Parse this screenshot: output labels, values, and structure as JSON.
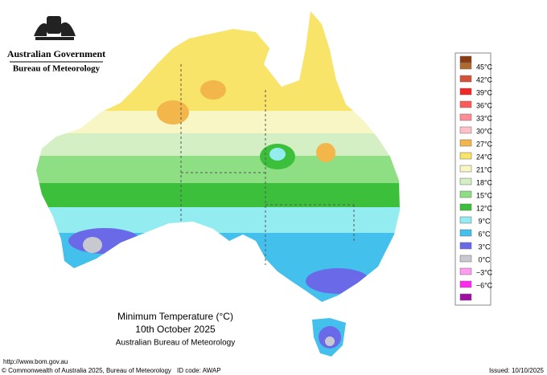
{
  "header": {
    "government": "Australian Government",
    "agency": "Bureau of Meteorology"
  },
  "legend": {
    "labels": [
      "45°C",
      "42°C",
      "39°C",
      "36°C",
      "33°C",
      "30°C",
      "27°C",
      "24°C",
      "21°C",
      "18°C",
      "15°C",
      "12°C",
      "9°C",
      "6°C",
      "3°C",
      "0°C",
      "−3°C",
      "−6°C"
    ],
    "colors": [
      "#8b3a12",
      "#b06a30",
      "#d2533a",
      "#f02828",
      "#ff5a5a",
      "#ff8c96",
      "#ffc0c8",
      "#f2b64a",
      "#f7e468",
      "#f8f6c4",
      "#d4efc4",
      "#8ede84",
      "#3cc03c",
      "#92ecf0",
      "#44c0ec",
      "#6a6ae8",
      "#c8c8d0",
      "#ff9cf0",
      "#ff2cf0",
      "#a010a0"
    ]
  },
  "title": {
    "line1": "Minimum Temperature (°C)",
    "line2": "10th October 2025",
    "line3": "Australian Bureau of Meteorology"
  },
  "footer": {
    "url": "http://www.bom.gov.au",
    "copyright": "© Commonwealth of Australia 2025, Bureau of Meteorology",
    "id": "ID code: AWAP",
    "issued": "Issued: 10/10/2025"
  }
}
